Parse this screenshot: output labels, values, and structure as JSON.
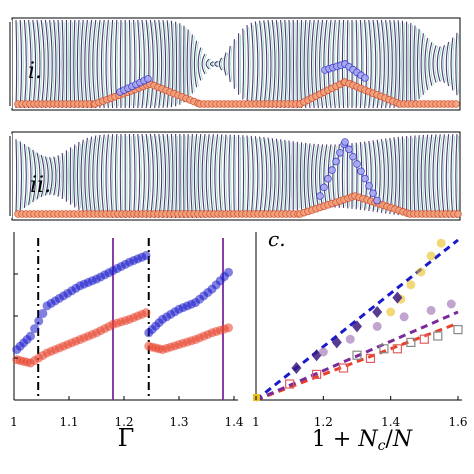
{
  "figure": {
    "panel_labels": {
      "i": "i.",
      "ii": "ii.",
      "c": "c."
    }
  },
  "chart_data": [
    {
      "type": "scatter",
      "panel": "b",
      "xlabel": "Γ",
      "ylabel": "",
      "xlim": [
        1.0,
        1.4
      ],
      "xticks": [
        1,
        1.1,
        1.2,
        1.3,
        1.4
      ],
      "xtick_labels": [
        "1",
        "1.1",
        "1.2",
        "1.3",
        "1.4"
      ],
      "colors": {
        "blue": "#1a1acc",
        "red": "#e8402a",
        "purple": "#7a2a9a",
        "black": "#000000"
      },
      "vlines_dashdot": [
        1.044,
        1.245
      ],
      "vlines_solid": [
        1.18,
        1.38
      ],
      "series": [
        {
          "segment": 1,
          "x": [
            1.005,
            1.03,
            1.06,
            1.09,
            1.12,
            1.15,
            1.18,
            1.21,
            1.24
          ],
          "y": [
            0.3,
            0.38,
            0.56,
            0.62,
            0.68,
            0.72,
            0.77,
            0.82,
            0.86
          ],
          "color": "blue"
        },
        {
          "segment": 2,
          "x": [
            1.245,
            1.27,
            1.3,
            1.33,
            1.36,
            1.39
          ],
          "y": [
            0.4,
            0.48,
            0.54,
            0.58,
            0.66,
            0.76
          ],
          "color": "blue"
        },
        {
          "segment": 1,
          "x": [
            1.005,
            1.03,
            1.06,
            1.09,
            1.12,
            1.15,
            1.18,
            1.21,
            1.24
          ],
          "y": [
            0.24,
            0.22,
            0.28,
            0.32,
            0.36,
            0.4,
            0.45,
            0.48,
            0.52
          ],
          "color": "red"
        },
        {
          "segment": 2,
          "x": [
            1.245,
            1.27,
            1.3,
            1.33,
            1.36,
            1.39
          ],
          "y": [
            0.32,
            0.3,
            0.33,
            0.36,
            0.4,
            0.43
          ],
          "color": "red"
        }
      ]
    },
    {
      "type": "scatter",
      "panel": "c",
      "xlabel": "1 + N_c/N",
      "ylabel": "",
      "xlim": [
        1.0,
        1.6
      ],
      "xticks": [
        1,
        1.2,
        1.4,
        1.6
      ],
      "xtick_labels": [
        "1",
        "1.2",
        "1.4",
        "1.6"
      ],
      "fit_lines": [
        {
          "color": "#1a1acc",
          "from": [
            1.0,
            0.0
          ],
          "to": [
            1.6,
            1.0
          ]
        },
        {
          "color": "#e8402a",
          "from": [
            1.0,
            0.0
          ],
          "to": [
            1.6,
            0.48
          ]
        },
        {
          "color": "#7a2a9a",
          "from": [
            1.0,
            0.0
          ],
          "to": [
            1.6,
            0.55
          ]
        }
      ],
      "series": [
        {
          "marker": "circle",
          "color": "#e8c020",
          "x": [
            1.4,
            1.43,
            1.46,
            1.49,
            1.52,
            1.55
          ],
          "y": [
            0.55,
            0.63,
            0.72,
            0.8,
            0.9,
            0.98
          ]
        },
        {
          "marker": "diamond",
          "color": "#3a1a80",
          "x": [
            1.12,
            1.18,
            1.24,
            1.3,
            1.36,
            1.42
          ],
          "y": [
            0.2,
            0.28,
            0.36,
            0.46,
            0.55,
            0.64
          ]
        },
        {
          "marker": "square",
          "color": "#e06060",
          "x": [
            1.1,
            1.18,
            1.26,
            1.34,
            1.42,
            1.5
          ],
          "y": [
            0.1,
            0.16,
            0.2,
            0.26,
            0.32,
            0.38
          ]
        },
        {
          "marker": "circle",
          "color": "#9a6ab0",
          "x": [
            1.2,
            1.28,
            1.36,
            1.44,
            1.52,
            1.58
          ],
          "y": [
            0.3,
            0.38,
            0.46,
            0.52,
            0.56,
            0.6
          ]
        },
        {
          "marker": "square",
          "color": "#888888",
          "x": [
            1.3,
            1.38,
            1.46,
            1.54,
            1.6
          ],
          "y": [
            0.28,
            0.32,
            0.36,
            0.4,
            0.44
          ]
        }
      ]
    }
  ]
}
